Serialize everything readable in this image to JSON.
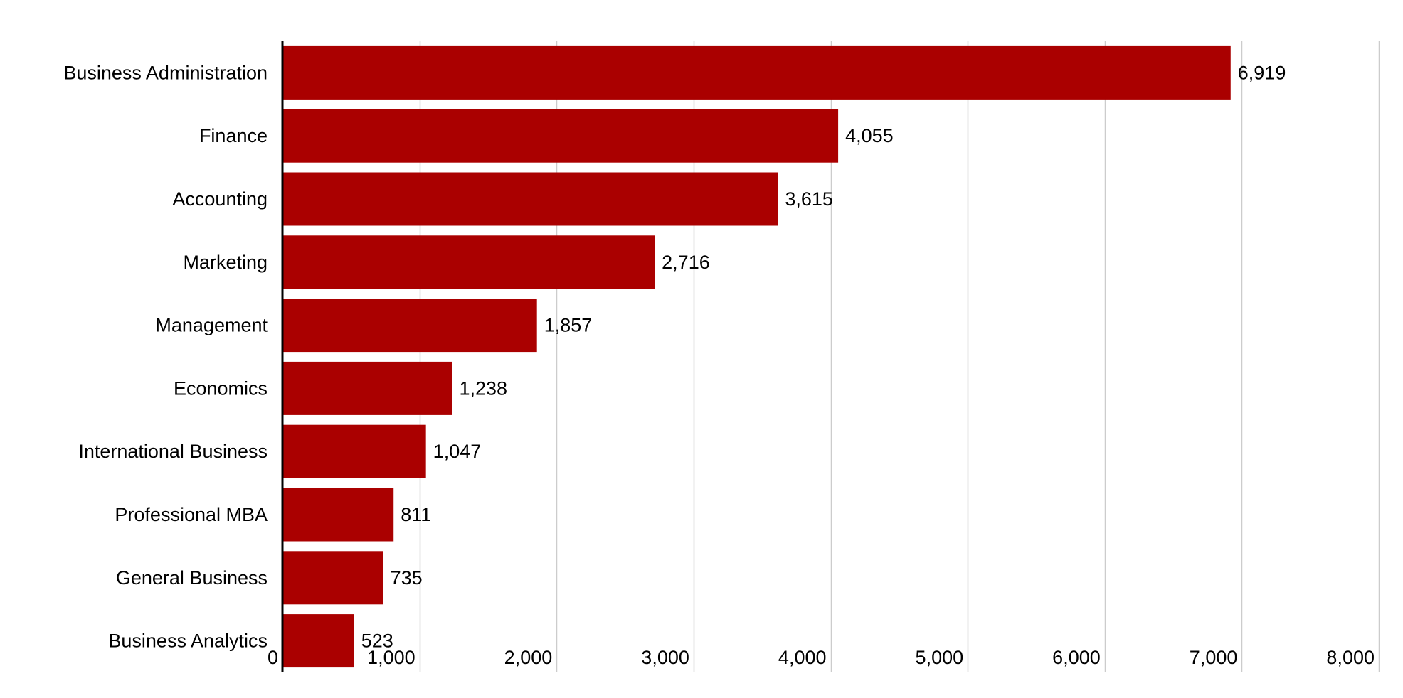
{
  "chart_data": {
    "type": "bar",
    "orientation": "horizontal",
    "title": "",
    "xlabel": "",
    "ylabel": "",
    "categories": [
      "Business Administration",
      "Finance",
      "Accounting",
      "Marketing",
      "Management",
      "Economics",
      "International Business",
      "Professional MBA",
      "General Business",
      "Business Analytics"
    ],
    "values": [
      6919,
      4055,
      3615,
      2716,
      1857,
      1238,
      1047,
      811,
      735,
      523
    ],
    "value_labels": [
      "6,919",
      "4,055",
      "3,615",
      "2,716",
      "1,857",
      "1,238",
      "1,047",
      "811",
      "735",
      "523"
    ],
    "xlim": [
      0,
      8000
    ],
    "x_ticks": [
      0,
      1000,
      2000,
      3000,
      4000,
      5000,
      6000,
      7000,
      8000
    ],
    "x_tick_labels": [
      "0",
      "1,000",
      "2,000",
      "3,000",
      "4,000",
      "5,000",
      "6,000",
      "7,000",
      "8,000"
    ],
    "grid": true,
    "legend": "none",
    "colors": {
      "bar": "#aa0000",
      "grid": "#cccccc",
      "axis": "#000000",
      "text": "#000000",
      "background": "#ffffff"
    }
  }
}
